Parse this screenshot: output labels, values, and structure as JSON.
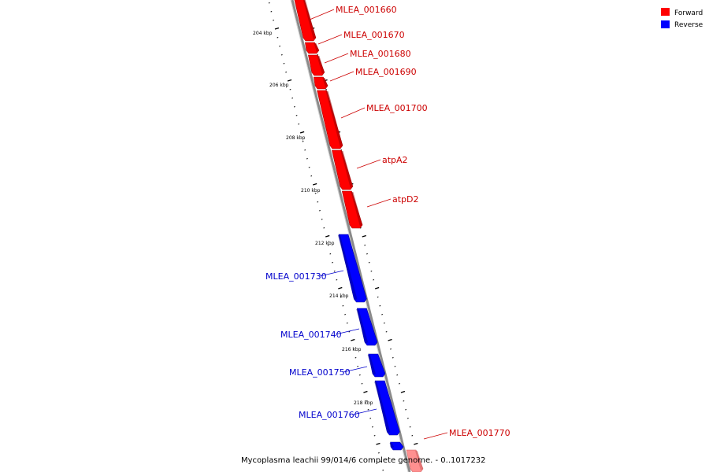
{
  "legend": {
    "forward_label": "Forward",
    "reverse_label": "Reverse"
  },
  "colors": {
    "forward": "#ff0000",
    "forward_dark": "#a00000",
    "reverse": "#0000ff",
    "reverse_dark": "#00009a",
    "faded_forward": "#ff9090",
    "backbone": "#8a8a8a"
  },
  "caption": "Mycoplasma leachii 99/014/6 complete genome. - 0..1017232",
  "ticks": {
    "unit": "kbp",
    "labels": [
      "204 kbp",
      "206 kbp",
      "208 kbp",
      "210 kbp",
      "212 kbp",
      "214 kbp",
      "216 kbp",
      "218 kbp"
    ]
  },
  "genes": [
    {
      "name": "MLEA_001660",
      "strand": "forward"
    },
    {
      "name": "MLEA_001670",
      "strand": "forward"
    },
    {
      "name": "MLEA_001680",
      "strand": "forward"
    },
    {
      "name": "MLEA_001690",
      "strand": "forward"
    },
    {
      "name": "MLEA_001700",
      "strand": "forward"
    },
    {
      "name": "atpA2",
      "strand": "forward"
    },
    {
      "name": "atpD2",
      "strand": "forward"
    },
    {
      "name": "MLEA_001730",
      "strand": "reverse"
    },
    {
      "name": "MLEA_001740",
      "strand": "reverse"
    },
    {
      "name": "MLEA_001750",
      "strand": "reverse"
    },
    {
      "name": "MLEA_001760",
      "strand": "reverse"
    },
    {
      "name": "MLEA_001770",
      "strand": "forward"
    }
  ]
}
